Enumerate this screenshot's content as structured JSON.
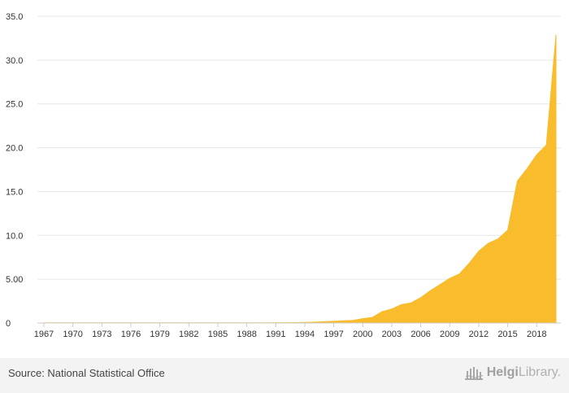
{
  "chart_data": {
    "type": "area",
    "title": "",
    "xlabel": "",
    "ylabel": "",
    "x": [
      1967,
      1968,
      1969,
      1970,
      1971,
      1972,
      1973,
      1974,
      1975,
      1976,
      1977,
      1978,
      1979,
      1980,
      1981,
      1982,
      1983,
      1984,
      1985,
      1986,
      1987,
      1988,
      1989,
      1990,
      1991,
      1992,
      1993,
      1994,
      1995,
      1996,
      1997,
      1998,
      1999,
      2000,
      2001,
      2002,
      2003,
      2004,
      2005,
      2006,
      2007,
      2008,
      2009,
      2010,
      2011,
      2012,
      2013,
      2014,
      2015,
      2016,
      2017,
      2018,
      2019,
      2020
    ],
    "values": [
      0.02,
      0.02,
      0.02,
      0.02,
      0.02,
      0.02,
      0.02,
      0.02,
      0.02,
      0.02,
      0.02,
      0.02,
      0.02,
      0.02,
      0.02,
      0.02,
      0.02,
      0.02,
      0.02,
      0.02,
      0.02,
      0.02,
      0.02,
      0.02,
      0.03,
      0.04,
      0.05,
      0.07,
      0.1,
      0.15,
      0.2,
      0.25,
      0.3,
      0.5,
      0.65,
      1.3,
      1.6,
      2.1,
      2.3,
      2.9,
      3.7,
      4.4,
      5.1,
      5.6,
      6.8,
      8.2,
      9.1,
      9.6,
      10.6,
      16.2,
      17.6,
      19.2,
      20.3,
      32.9
    ],
    "ylim": [
      0,
      35
    ],
    "y_ticks": [
      "0",
      "5.00",
      "10.0",
      "15.0",
      "20.0",
      "25.0",
      "30.0",
      "35.0"
    ],
    "x_ticks": [
      "1967",
      "1970",
      "1973",
      "1976",
      "1979",
      "1982",
      "1985",
      "1988",
      "1991",
      "1994",
      "1997",
      "2000",
      "2003",
      "2006",
      "2009",
      "2012",
      "2015",
      "2018"
    ],
    "grid": true,
    "series_color": "#f8bc2c",
    "grid_color": "#e6e6e6",
    "axis_color": "#cccccc"
  },
  "footer": {
    "source": "Source: National Statistical Office",
    "brand_bold": "Helgi",
    "brand_light": "Library.",
    "logo_icon": "library-building-icon"
  }
}
